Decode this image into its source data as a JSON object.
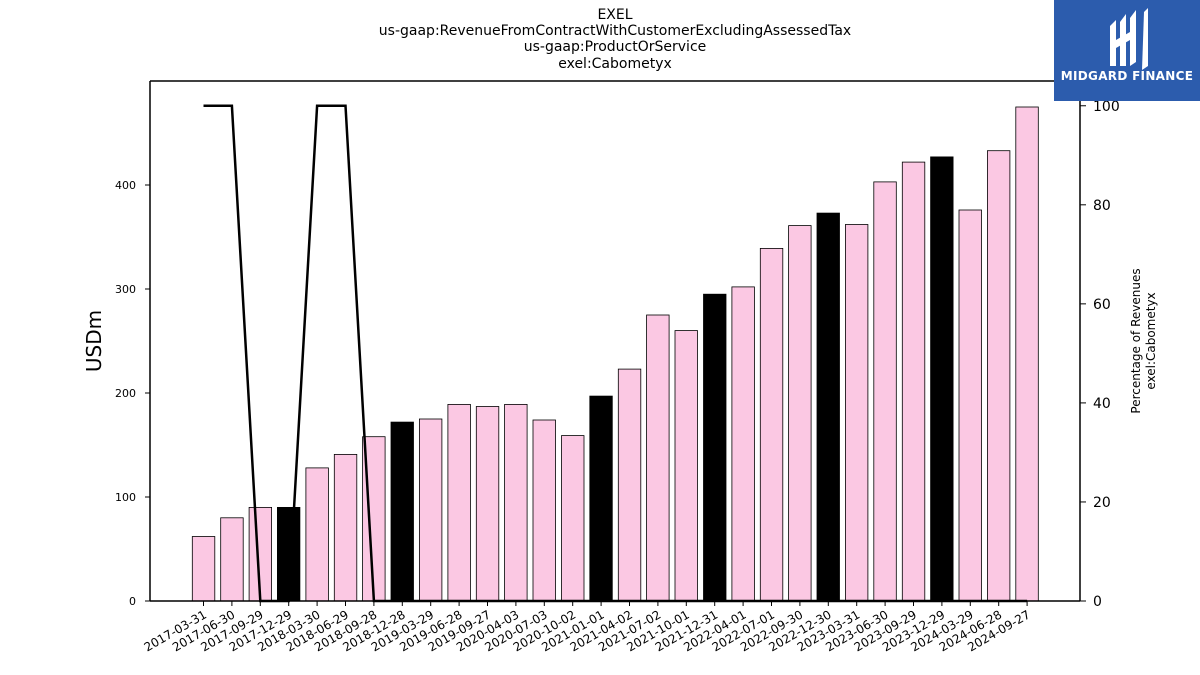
{
  "title_lines": [
    "EXEL",
    "us-gaap:RevenueFromContractWithCustomerExcludingAssessedTax",
    "us-gaap:ProductOrService",
    "exel:Cabometyx"
  ],
  "logo": {
    "text": "MIDGARD FINANCE",
    "icon": "midgard-logo-icon",
    "bg": "#2c5cad"
  },
  "colors": {
    "bar_normal": "#fbc8e3",
    "bar_highlight": "#000000",
    "line": "#000000"
  },
  "chart_data": {
    "type": "bar",
    "categories": [
      "2017-03-31",
      "2017-06-30",
      "2017-09-29",
      "2017-12-29",
      "2018-03-30",
      "2018-06-29",
      "2018-09-28",
      "2018-12-28",
      "2019-03-29",
      "2019-06-28",
      "2019-09-27",
      "2020-04-03",
      "2020-07-03",
      "2020-10-02",
      "2021-01-01",
      "2021-04-02",
      "2021-07-02",
      "2021-10-01",
      "2021-12-31",
      "2022-04-01",
      "2022-07-01",
      "2022-09-30",
      "2022-12-30",
      "2023-03-31",
      "2023-06-30",
      "2023-09-29",
      "2023-12-29",
      "2024-03-29",
      "2024-06-28",
      "2024-09-27"
    ],
    "series": [
      {
        "values": [
          62,
          80,
          90,
          90,
          128,
          141,
          158,
          172,
          175,
          189,
          187,
          189,
          174,
          159,
          197,
          223,
          275,
          260,
          295,
          302,
          339,
          361,
          373,
          362,
          403,
          422,
          427,
          376,
          433,
          475
        ],
        "highlight": [
          false,
          false,
          false,
          true,
          false,
          false,
          false,
          true,
          false,
          false,
          false,
          false,
          false,
          false,
          true,
          false,
          false,
          false,
          true,
          false,
          false,
          false,
          true,
          false,
          false,
          false,
          true,
          false,
          false,
          false
        ]
      },
      {
        "type": "line",
        "axis": "right",
        "values": [
          100,
          100,
          0,
          0,
          100,
          100,
          0,
          0,
          0,
          0,
          0,
          0,
          0,
          0,
          0,
          0,
          0,
          0,
          0,
          0,
          0,
          0,
          0,
          0,
          0,
          0,
          0,
          0,
          0,
          0
        ]
      }
    ],
    "ylabel": "USDm",
    "y2label": [
      "Percentage of Revenues",
      "exel:Cabometyx"
    ],
    "ylim": [
      0,
      500
    ],
    "y2lim": [
      0,
      105
    ],
    "yticks": [
      0,
      100,
      200,
      300,
      400
    ],
    "y2ticks": [
      0,
      20,
      40,
      60,
      80,
      100
    ],
    "grid": false,
    "legend": "none"
  }
}
